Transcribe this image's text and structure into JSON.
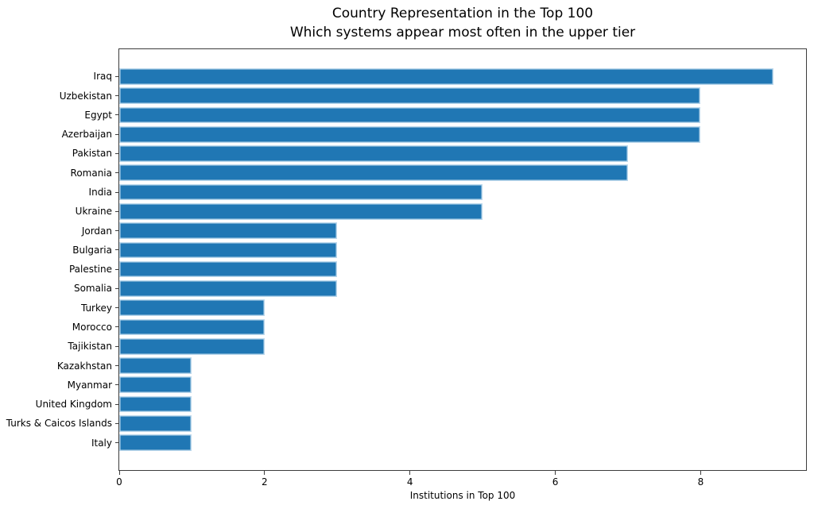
{
  "chart_data": {
    "type": "bar",
    "orientation": "horizontal",
    "title": "Country Representation in the Top 100",
    "subtitle": "Which systems appear most often in the upper tier",
    "xlabel": "Institutions in Top 100",
    "ylabel": "",
    "categories": [
      "Iraq",
      "Uzbekistan",
      "Egypt",
      "Azerbaijan",
      "Pakistan",
      "Romania",
      "India",
      "Ukraine",
      "Jordan",
      "Bulgaria",
      "Palestine",
      "Somalia",
      "Turkey",
      "Morocco",
      "Tajikistan",
      "Kazakhstan",
      "Myanmar",
      "United Kingdom",
      "Turks & Caicos Islands",
      "Italy"
    ],
    "values": [
      9,
      8,
      8,
      8,
      7,
      7,
      5,
      5,
      3,
      3,
      3,
      3,
      2,
      2,
      2,
      1,
      1,
      1,
      1,
      1
    ],
    "xticks": [
      0,
      2,
      4,
      6,
      8
    ],
    "xlim": [
      0,
      9.45
    ],
    "grid": false,
    "legend": null,
    "colors": {
      "bar": "#2077b4",
      "bar_edge": "#bcd8ec",
      "spine": "#3c3c3c",
      "text": "#000000",
      "background": "#ffffff"
    }
  }
}
